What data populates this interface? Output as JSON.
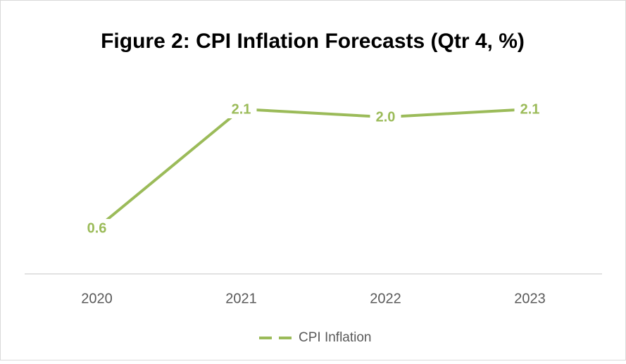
{
  "chart_data": {
    "type": "line",
    "title": "Figure 2: CPI Inflation Forecasts (Qtr 4, %)",
    "categories": [
      "2020",
      "2021",
      "2022",
      "2023"
    ],
    "series": [
      {
        "name": "CPI Inflation",
        "color": "#9bbb59",
        "values": [
          0.6,
          2.1,
          2.0,
          2.1
        ],
        "value_labels": [
          "0.6",
          "2.1",
          "2.0",
          "2.1"
        ]
      }
    ]
  }
}
